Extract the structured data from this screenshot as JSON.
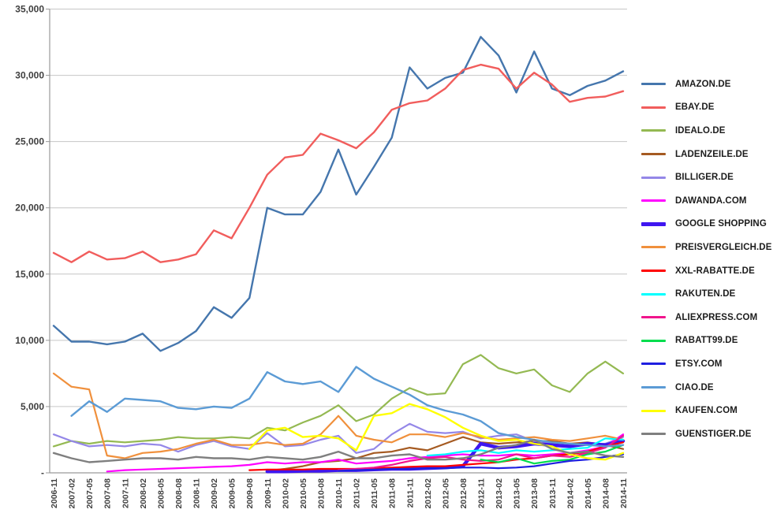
{
  "chart_data": {
    "type": "line",
    "title": "",
    "xlabel": "",
    "ylabel": "",
    "grid": "horizontal",
    "legend_position": "right",
    "ylim": [
      0,
      35000
    ],
    "y_ticks": {
      "values": [
        0,
        5000,
        10000,
        15000,
        20000,
        25000,
        30000,
        35000
      ],
      "labels": [
        "-",
        "5,000",
        "10,000",
        "15,000",
        "20,000",
        "25,000",
        "30,000",
        "35,000"
      ]
    },
    "categories": [
      "2006-11",
      "2007-02",
      "2007-05",
      "2007-08",
      "2007-11",
      "2008-02",
      "2008-05",
      "2008-08",
      "2008-11",
      "2009-02",
      "2009-05",
      "2009-08",
      "2009-11",
      "2010-02",
      "2010-05",
      "2010-08",
      "2010-11",
      "2011-02",
      "2011-05",
      "2011-08",
      "2011-11",
      "2012-02",
      "2012-05",
      "2012-08",
      "2012-11",
      "2013-02",
      "2013-05",
      "2013-08",
      "2013-11",
      "2014-02",
      "2014-05",
      "2014-08",
      "2014-11"
    ],
    "series": [
      {
        "name": "AMAZON.DE",
        "color": "#4576ad",
        "width": 2.4,
        "values": [
          11100,
          9900,
          9900,
          9700,
          9900,
          10500,
          9200,
          9800,
          10700,
          12500,
          11700,
          13200,
          20000,
          19500,
          19500,
          21200,
          24400,
          21000,
          23100,
          25300,
          30600,
          29000,
          29800,
          30200,
          32900,
          31500,
          28700,
          31800,
          29000,
          28500,
          29200,
          29600,
          30300
        ]
      },
      {
        "name": "EBAY.DE",
        "color": "#f15d5c",
        "width": 2.4,
        "values": [
          16600,
          15900,
          16700,
          16100,
          16200,
          16700,
          15900,
          16100,
          16500,
          18300,
          17700,
          20000,
          22500,
          23800,
          24000,
          25600,
          25100,
          24500,
          25700,
          27400,
          27900,
          28100,
          29000,
          30400,
          30800,
          30500,
          29000,
          30200,
          29300,
          28000,
          28300,
          28400,
          28800
        ]
      },
      {
        "name": "IDEALO.DE",
        "color": "#94b952",
        "width": 2.2,
        "values": [
          2000,
          2400,
          2200,
          2400,
          2300,
          2400,
          2500,
          2700,
          2600,
          2600,
          2700,
          2600,
          3400,
          3200,
          3800,
          4300,
          5100,
          3900,
          4400,
          5600,
          6400,
          5900,
          6000,
          8200,
          8900,
          7900,
          7500,
          7800,
          6600,
          6100,
          7500,
          8400,
          7500
        ]
      },
      {
        "name": "LADENZEILE.DE",
        "color": "#a55a21",
        "width": 2.2,
        "values": [
          null,
          null,
          null,
          null,
          null,
          null,
          null,
          null,
          null,
          null,
          null,
          null,
          150,
          300,
          500,
          800,
          900,
          1100,
          1500,
          1600,
          1900,
          1700,
          2200,
          2700,
          2300,
          2200,
          2300,
          2400,
          2400,
          2200,
          2300,
          2100,
          1800
        ]
      },
      {
        "name": "BILLIGER.DE",
        "color": "#9487e8",
        "width": 2.2,
        "values": [
          2900,
          2400,
          2000,
          2100,
          2000,
          2200,
          2100,
          1600,
          2100,
          2400,
          2000,
          1800,
          3000,
          2000,
          2100,
          2500,
          2800,
          1500,
          1800,
          2900,
          3700,
          3100,
          3000,
          3100,
          2600,
          2800,
          2900,
          2400,
          2200,
          2000,
          2100,
          2200,
          2700
        ]
      },
      {
        "name": "DAWANDA.COM",
        "color": "#ff00ff",
        "width": 2.2,
        "values": [
          null,
          null,
          null,
          100,
          200,
          250,
          300,
          350,
          400,
          450,
          500,
          600,
          800,
          700,
          800,
          800,
          1000,
          700,
          800,
          900,
          1100,
          1200,
          1300,
          1400,
          1300,
          1300,
          1400,
          1300,
          1400,
          1500,
          1700,
          2000,
          2900
        ]
      },
      {
        "name": "GOOGLE SHOPPING",
        "color": "#3f16f0",
        "width": 4.5,
        "values": [
          null,
          null,
          null,
          null,
          null,
          null,
          null,
          null,
          null,
          null,
          null,
          null,
          100,
          100,
          150,
          150,
          200,
          200,
          250,
          300,
          300,
          350,
          400,
          500,
          2200,
          1900,
          2000,
          2200,
          2100,
          2000,
          2200,
          2100,
          2400
        ]
      },
      {
        "name": "PREISVERGLEICH.DE",
        "color": "#f0903c",
        "width": 2.2,
        "values": [
          7500,
          6500,
          6300,
          1300,
          1100,
          1500,
          1600,
          1800,
          2200,
          2500,
          2100,
          2100,
          2300,
          2100,
          2200,
          2900,
          4300,
          2800,
          2500,
          2300,
          2900,
          2900,
          2700,
          3000,
          2700,
          2500,
          2600,
          2700,
          2500,
          2400,
          2600,
          2800,
          2500
        ]
      },
      {
        "name": "XXL-RABATTE.DE",
        "color": "#ff0000",
        "width": 2.2,
        "values": [
          null,
          null,
          null,
          null,
          null,
          null,
          null,
          null,
          null,
          null,
          null,
          200,
          250,
          250,
          250,
          300,
          300,
          300,
          350,
          400,
          450,
          500,
          500,
          600,
          700,
          800,
          1000,
          1100,
          1300,
          1400,
          1600,
          2000,
          2300
        ]
      },
      {
        "name": "RAKUTEN.DE",
        "color": "#00ffff",
        "width": 2.2,
        "values": [
          null,
          null,
          null,
          null,
          null,
          null,
          null,
          null,
          null,
          null,
          null,
          null,
          null,
          null,
          null,
          null,
          null,
          null,
          null,
          null,
          null,
          1300,
          1400,
          1600,
          1700,
          1500,
          1700,
          1600,
          1700,
          1800,
          1900,
          2600,
          2500
        ]
      },
      {
        "name": "ALIEXPRESS.COM",
        "color": "#f0148c",
        "width": 2.2,
        "values": [
          null,
          null,
          null,
          null,
          null,
          null,
          null,
          null,
          null,
          null,
          null,
          null,
          null,
          null,
          null,
          null,
          200,
          300,
          400,
          600,
          900,
          1100,
          1200,
          1000,
          900,
          1000,
          1400,
          1100,
          1300,
          1200,
          1500,
          1900,
          2800
        ]
      },
      {
        "name": "RABATT99.DE",
        "color": "#00dd4d",
        "width": 2.2,
        "values": [
          null,
          null,
          null,
          null,
          null,
          null,
          null,
          null,
          null,
          null,
          null,
          null,
          null,
          null,
          null,
          null,
          null,
          null,
          null,
          null,
          null,
          null,
          null,
          null,
          1000,
          800,
          1100,
          700,
          900,
          1000,
          1400,
          1600,
          2100
        ]
      },
      {
        "name": "ETSY.COM",
        "color": "#1f1fe0",
        "width": 2.2,
        "values": [
          null,
          null,
          null,
          null,
          null,
          null,
          null,
          null,
          null,
          null,
          null,
          null,
          null,
          null,
          null,
          null,
          150,
          200,
          250,
          300,
          300,
          350,
          350,
          400,
          400,
          350,
          400,
          500,
          700,
          900,
          1000,
          1200,
          1400
        ]
      },
      {
        "name": "CIAO.DE",
        "color": "#5b9bd5",
        "width": 2.4,
        "values": [
          null,
          4300,
          5400,
          4600,
          5600,
          5500,
          5400,
          4900,
          4800,
          5000,
          4900,
          5600,
          7600,
          6900,
          6700,
          6900,
          6100,
          8000,
          7100,
          6500,
          5900,
          5100,
          4700,
          4400,
          3900,
          3000,
          2700,
          2500,
          2300,
          2200,
          2100,
          2000,
          2100
        ]
      },
      {
        "name": "KAUFEN.COM",
        "color": "#ffff00",
        "width": 2.4,
        "values": [
          null,
          null,
          null,
          null,
          null,
          null,
          null,
          null,
          null,
          null,
          null,
          1800,
          3200,
          3400,
          2700,
          2800,
          2600,
          1700,
          4300,
          4500,
          5200,
          4800,
          4200,
          3400,
          2800,
          2400,
          2500,
          2200,
          2000,
          1400,
          1100,
          1000,
          1500
        ]
      },
      {
        "name": "GUENSTIGER.DE",
        "color": "#7f7f7f",
        "width": 2.4,
        "values": [
          1500,
          1100,
          800,
          900,
          1000,
          1100,
          1100,
          1000,
          1200,
          1100,
          1100,
          1000,
          1200,
          1100,
          1000,
          1200,
          1600,
          1100,
          1100,
          1300,
          1400,
          1000,
          1000,
          1100,
          1400,
          1900,
          2100,
          2500,
          1800,
          1500,
          1600,
          1300,
          1200
        ]
      }
    ],
    "colors": {
      "gridline": "#c6c6c6",
      "axis": "#9a9a9a",
      "tick_label": "#3f3f3f",
      "legend_text": "#1c1c1c",
      "background": "#ffffff"
    }
  }
}
